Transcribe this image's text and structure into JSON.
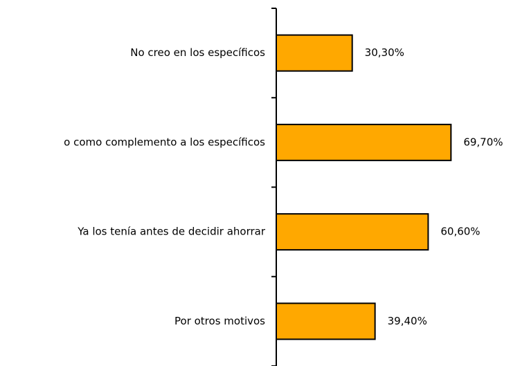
{
  "chart_data": {
    "type": "bar",
    "orientation": "horizontal",
    "categories": [
      "No creo en los específicos",
      "o como complemento a los específicos",
      "Ya los tenía antes de decidir ahorrar",
      "Por otros motivos"
    ],
    "values": [
      30.3,
      69.7,
      60.6,
      39.4
    ],
    "value_labels": [
      "30,30%",
      "69,70%",
      "60,60%",
      "39,40%"
    ],
    "color": "#ffa800"
  }
}
